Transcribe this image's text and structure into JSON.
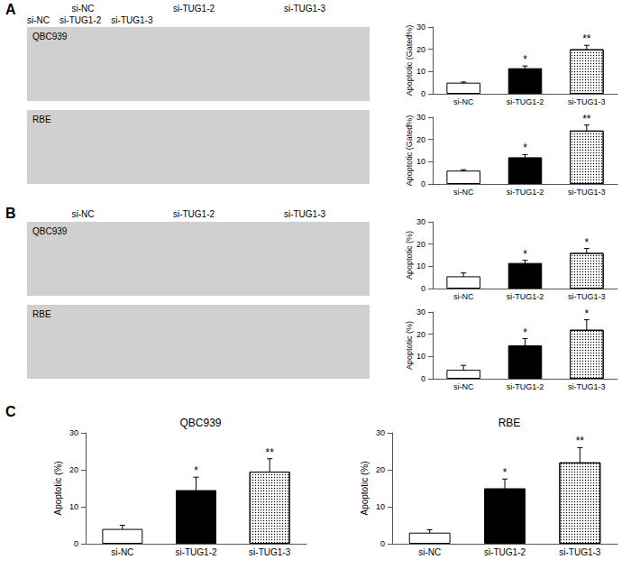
{
  "chart_data": [
    {
      "type": "text",
      "annotations": [
        "A",
        "si-NC",
        "si-TUG1-2",
        "si-TUG1-3",
        "B",
        "si-NC",
        "si-TUG1-2",
        "si-TUG1-3",
        "C"
      ]
    },
    {
      "type": "image",
      "title": "si-NC    si-TUG1-2    si-TUG1-3",
      "annotations": [
        "QBC939"
      ]
    },
    {
      "type": "image",
      "annotations": [
        "RBE"
      ]
    },
    {
      "type": "bar",
      "categories": [
        "si-NC",
        "si-TUG1-2",
        "si-TUG1-3"
      ],
      "values": [
        5.0,
        11.5,
        20.0
      ],
      "errors": [
        0.3,
        1.0,
        1.8
      ],
      "annotations": [
        null,
        "*",
        "**"
      ],
      "ylabel": "Apoptotic (Gated%)",
      "ylim": [
        0,
        30
      ],
      "yticks": [
        0,
        10,
        20,
        30
      ],
      "colors": [
        "#ffffff",
        "#000000",
        "#ffffff"
      ],
      "grid": false
    },
    {
      "type": "bar",
      "categories": [
        "si-NC",
        "si-TUG1-2",
        "si-TUG1-3"
      ],
      "values": [
        6.0,
        12.0,
        24.0
      ],
      "errors": [
        0.4,
        1.2,
        2.5
      ],
      "annotations": [
        null,
        "*",
        "**"
      ],
      "ylabel": "Apoptotic (Gated%)",
      "ylim": [
        0,
        30
      ],
      "yticks": [
        0,
        10,
        20,
        30
      ],
      "colors": [
        "#ffffff",
        "#000000",
        "#ffffff"
      ],
      "grid": false
    },
    {
      "type": "image",
      "annotations": [
        "QBC939"
      ]
    },
    {
      "type": "image",
      "annotations": [
        "RBE"
      ]
    },
    {
      "type": "bar",
      "categories": [
        "si-NC",
        "si-TUG1-2",
        "si-TUG1-3"
      ],
      "values": [
        5.5,
        11.5,
        16.0
      ],
      "errors": [
        1.5,
        1.2,
        2.0
      ],
      "annotations": [
        null,
        "*",
        "*"
      ],
      "ylabel": "Apoptotic (%)",
      "ylim": [
        0,
        30
      ],
      "yticks": [
        0,
        10,
        20,
        30
      ],
      "colors": [
        "#ffffff",
        "#000000",
        "#ffffff"
      ],
      "grid": false
    },
    {
      "type": "bar",
      "categories": [
        "si-NC",
        "si-TUG1-2",
        "si-TUG1-3"
      ],
      "values": [
        4.0,
        15.0,
        22.0
      ],
      "errors": [
        2.0,
        3.0,
        4.5
      ],
      "annotations": [
        null,
        "*",
        "*"
      ],
      "ylabel": "Apoptotic (%)",
      "ylim": [
        0,
        30
      ],
      "yticks": [
        0,
        10,
        20,
        30
      ],
      "colors": [
        "#ffffff",
        "#000000",
        "#ffffff"
      ],
      "grid": false
    },
    {
      "type": "bar",
      "title": "QBC939",
      "categories": [
        "si-NC",
        "si-TUG1-2",
        "si-TUG1-3"
      ],
      "values": [
        4.0,
        14.5,
        19.5
      ],
      "errors": [
        1.0,
        3.5,
        3.5
      ],
      "annotations": [
        null,
        "*",
        "**"
      ],
      "ylabel": "Apoptotic (%)",
      "ylim": [
        0,
        30
      ],
      "yticks": [
        0,
        10,
        20,
        30
      ],
      "colors": [
        "#ffffff",
        "#000000",
        "#ffffff"
      ],
      "grid": false
    },
    {
      "type": "bar",
      "title": "RBE",
      "categories": [
        "si-NC",
        "si-TUG1-2",
        "si-TUG1-3"
      ],
      "values": [
        3.0,
        15.0,
        22.0
      ],
      "errors": [
        0.8,
        2.5,
        4.0
      ],
      "annotations": [
        null,
        "*",
        "**"
      ],
      "ylabel": "Apoptotic (%)",
      "ylim": [
        0,
        30
      ],
      "yticks": [
        0,
        10,
        20,
        30
      ],
      "colors": [
        "#ffffff",
        "#000000",
        "#ffffff"
      ],
      "grid": false
    }
  ]
}
